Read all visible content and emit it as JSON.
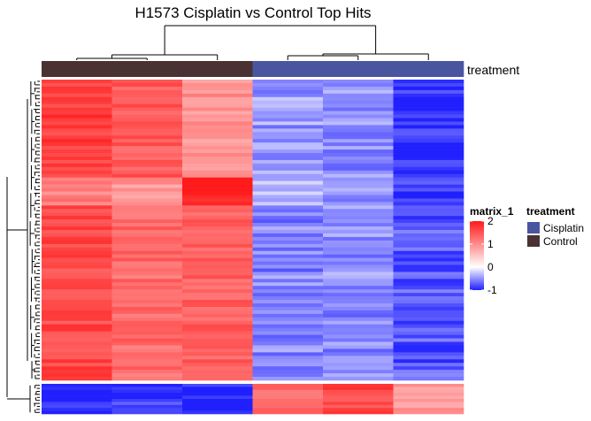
{
  "chart_data": {
    "type": "heatmap",
    "title": "H1573 Cisplatin vs Control Top Hits",
    "annotation_label": "treatment",
    "columns": [
      {
        "group": "Control"
      },
      {
        "group": "Control"
      },
      {
        "group": "Control"
      },
      {
        "group": "Cisplatin"
      },
      {
        "group": "Cisplatin"
      },
      {
        "group": "Cisplatin"
      }
    ],
    "row_blocks": [
      {
        "rows": 28,
        "base": [
          1.7,
          1.45,
          0.95,
          -0.45,
          -0.5,
          -0.95
        ]
      },
      {
        "rows": 8,
        "base": [
          1.1,
          0.9,
          2.0,
          -0.4,
          -0.5,
          -0.85
        ]
      },
      {
        "rows": 50,
        "base": [
          1.6,
          1.3,
          1.4,
          -0.55,
          -0.5,
          -0.75
        ]
      },
      {
        "rows": 10,
        "base": [
          -1.0,
          -0.9,
          -0.95,
          1.3,
          1.6,
          0.9
        ]
      }
    ],
    "color_scale": {
      "title": "matrix_1",
      "ticks": [
        2,
        1,
        0,
        -1
      ],
      "range": [
        -1,
        2
      ],
      "stops": [
        {
          "value": -1,
          "color": "#2020ff"
        },
        {
          "value": 0,
          "color": "#ffffff"
        },
        {
          "value": 2,
          "color": "#ff1a1a"
        }
      ]
    },
    "treatment_legend": {
      "title": "treatment",
      "entries": [
        {
          "label": "Cisplatin",
          "color": "#4a55a0"
        },
        {
          "label": "Control",
          "color": "#4a3232"
        }
      ]
    }
  }
}
